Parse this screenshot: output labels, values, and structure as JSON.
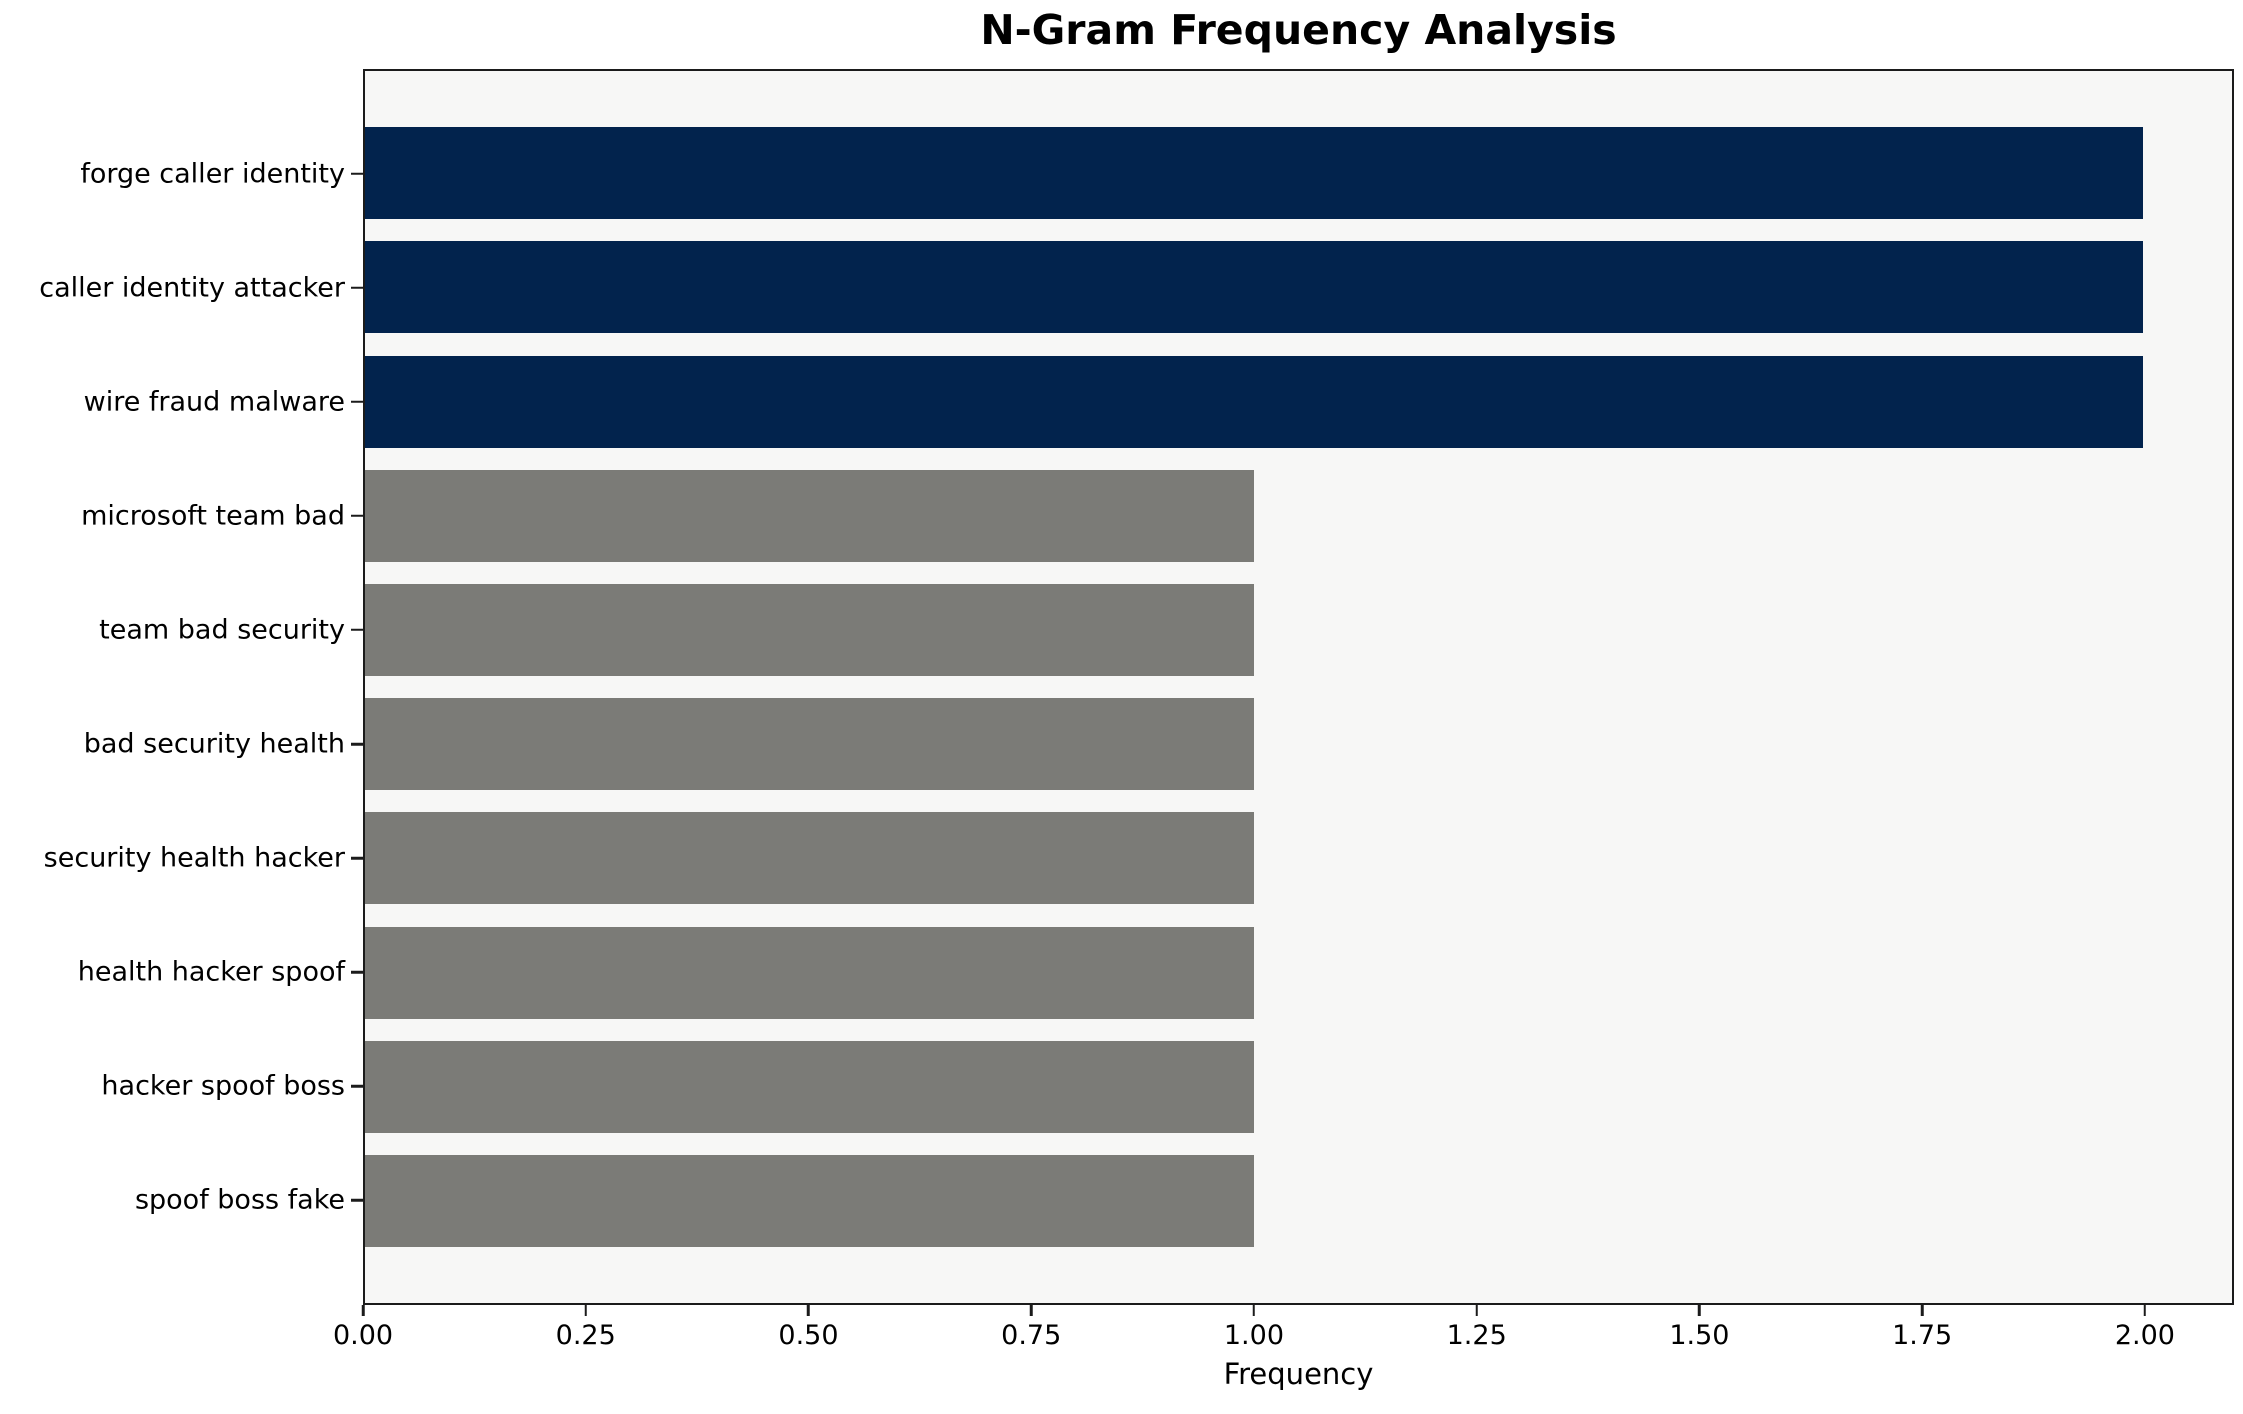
{
  "chart_data": {
    "type": "bar",
    "orientation": "horizontal",
    "title": "N-Gram Frequency Analysis",
    "xlabel": "Frequency",
    "ylabel": "",
    "categories": [
      "forge caller identity",
      "caller identity attacker",
      "wire fraud malware",
      "microsoft team bad",
      "team bad security",
      "bad security health",
      "security health hacker",
      "health hacker spoof",
      "hacker spoof boss",
      "spoof boss fake"
    ],
    "values": [
      2,
      2,
      2,
      1,
      1,
      1,
      1,
      1,
      1,
      1
    ],
    "bar_colors": [
      "#02234d",
      "#02234d",
      "#02234d",
      "#7b7b77",
      "#7b7b77",
      "#7b7b77",
      "#7b7b77",
      "#7b7b77",
      "#7b7b77",
      "#7b7b77"
    ],
    "xlim": [
      0,
      2.1
    ],
    "xticks": [
      0,
      0.25,
      0.5,
      0.75,
      1,
      1.25,
      1.5,
      1.75,
      2
    ],
    "xtick_labels": [
      "0.00",
      "0.25",
      "0.50",
      "0.75",
      "1.00",
      "1.25",
      "1.50",
      "1.75",
      "2.00"
    ],
    "grid": false,
    "legend": "none",
    "colors": {
      "high_frequency_bar": "#02234d",
      "low_frequency_bar": "#7b7b77",
      "axes_background": "#f7f7f6",
      "figure_background": "#ffffff",
      "spine": "#1b1b1b",
      "text": "#000000"
    }
  }
}
